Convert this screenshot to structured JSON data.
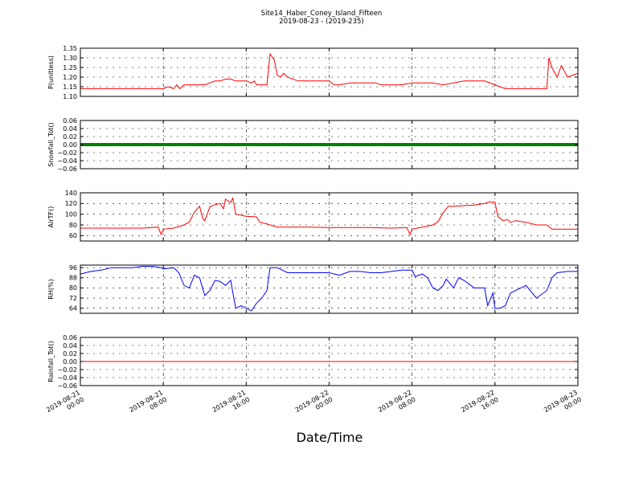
{
  "figure": {
    "title_line1": "Site14_Haber_Coney_Island_Fifteen",
    "title_line2": "2019-08-23 - (2019-235)",
    "xlabel": "Date/Time"
  },
  "chart_data": {
    "type": "line",
    "x_axis": {
      "range": [
        "2019-08-21 00:00",
        "2019-08-23 00:00"
      ],
      "tick_labels": [
        {
          "line1": "2019-08-21",
          "line2": "00:00",
          "t": 0
        },
        {
          "line1": "2019-08-21",
          "line2": "08:00",
          "t": 8
        },
        {
          "line1": "2019-08-21",
          "line2": "16:00",
          "t": 16
        },
        {
          "line1": "2019-08-22",
          "line2": "00:00",
          "t": 24
        },
        {
          "line1": "2019-08-22",
          "line2": "08:00",
          "t": 32
        },
        {
          "line1": "2019-08-22",
          "line2": "16:00",
          "t": 40
        },
        {
          "line1": "2019-08-23",
          "line2": "00:00",
          "t": 48
        }
      ]
    },
    "grid": true,
    "panels": [
      {
        "ylabel": "P(unitless)",
        "color": "#ff0000",
        "ylim": [
          1.1,
          1.35
        ],
        "yticks": [
          1.1,
          1.15,
          1.2,
          1.25,
          1.3,
          1.35
        ],
        "ytick_labels": [
          "1.10",
          "1.15",
          "1.20",
          "1.25",
          "1.30",
          "1.35"
        ],
        "marker": "line",
        "points": [
          [
            0,
            1.14
          ],
          [
            1,
            1.14
          ],
          [
            2,
            1.14
          ],
          [
            3,
            1.14
          ],
          [
            4,
            1.14
          ],
          [
            5,
            1.14
          ],
          [
            6,
            1.14
          ],
          [
            7,
            1.14
          ],
          [
            8,
            1.14
          ],
          [
            8.5,
            1.15
          ],
          [
            9,
            1.14
          ],
          [
            9.3,
            1.16
          ],
          [
            9.6,
            1.14
          ],
          [
            10,
            1.16
          ],
          [
            11,
            1.16
          ],
          [
            12,
            1.16
          ],
          [
            12.5,
            1.17
          ],
          [
            13,
            1.18
          ],
          [
            13.5,
            1.18
          ],
          [
            14,
            1.19
          ],
          [
            14.5,
            1.19
          ],
          [
            15,
            1.18
          ],
          [
            16,
            1.18
          ],
          [
            16.5,
            1.17
          ],
          [
            16.8,
            1.18
          ],
          [
            17,
            1.16
          ],
          [
            18,
            1.16
          ],
          [
            18.3,
            1.32
          ],
          [
            18.7,
            1.29
          ],
          [
            19,
            1.21
          ],
          [
            19.3,
            1.2
          ],
          [
            19.6,
            1.22
          ],
          [
            20,
            1.2
          ],
          [
            21,
            1.18
          ],
          [
            22,
            1.18
          ],
          [
            23,
            1.18
          ],
          [
            24,
            1.18
          ],
          [
            24.5,
            1.16
          ],
          [
            25,
            1.16
          ],
          [
            26,
            1.17
          ],
          [
            27,
            1.17
          ],
          [
            28,
            1.17
          ],
          [
            28.5,
            1.17
          ],
          [
            29,
            1.16
          ],
          [
            30,
            1.16
          ],
          [
            31,
            1.16
          ],
          [
            32,
            1.17
          ],
          [
            33,
            1.17
          ],
          [
            34,
            1.17
          ],
          [
            35,
            1.16
          ],
          [
            36,
            1.17
          ],
          [
            37,
            1.18
          ],
          [
            38,
            1.18
          ],
          [
            39,
            1.18
          ],
          [
            40,
            1.16
          ],
          [
            41,
            1.14
          ],
          [
            42,
            1.14
          ],
          [
            43,
            1.14
          ],
          [
            44,
            1.14
          ],
          [
            45,
            1.14
          ],
          [
            45.2,
            1.3
          ],
          [
            45.5,
            1.25
          ],
          [
            46,
            1.2
          ],
          [
            46.4,
            1.26
          ],
          [
            47,
            1.2
          ],
          [
            47.5,
            1.21
          ],
          [
            48,
            1.22
          ]
        ]
      },
      {
        "ylabel": "Snowfall_Tot()",
        "color": "#008000",
        "ylim": [
          -0.06,
          0.06
        ],
        "yticks": [
          -0.06,
          -0.04,
          -0.02,
          0.0,
          0.02,
          0.04,
          0.06
        ],
        "ytick_labels": [
          "−0.06",
          "−0.04",
          "−0.02",
          "0.00",
          "0.02",
          "0.04",
          "0.06"
        ],
        "marker": "thick-line",
        "points": [
          [
            0,
            0.0
          ],
          [
            48,
            0.0
          ]
        ]
      },
      {
        "ylabel": "AirTF()",
        "color": "#ff0000",
        "ylim": [
          50,
          140
        ],
        "yticks": [
          60,
          80,
          100,
          120,
          140
        ],
        "ytick_labels": [
          "60",
          "80",
          "100",
          "120",
          "140"
        ],
        "marker": "line",
        "points": [
          [
            0,
            74
          ],
          [
            2,
            74
          ],
          [
            4,
            74
          ],
          [
            6,
            74
          ],
          [
            7.5,
            76
          ],
          [
            7.8,
            62
          ],
          [
            8,
            72
          ],
          [
            9,
            74
          ],
          [
            10,
            80
          ],
          [
            10.5,
            85
          ],
          [
            11,
            104
          ],
          [
            11.5,
            115
          ],
          [
            11.8,
            92
          ],
          [
            12,
            88
          ],
          [
            12.5,
            114
          ],
          [
            13,
            118
          ],
          [
            13.5,
            120
          ],
          [
            13.8,
            110
          ],
          [
            14,
            128
          ],
          [
            14.5,
            122
          ],
          [
            14.7,
            130
          ],
          [
            15,
            100
          ],
          [
            15.5,
            98
          ],
          [
            16,
            96
          ],
          [
            17,
            95
          ],
          [
            17.3,
            85
          ],
          [
            18,
            82
          ],
          [
            19,
            76
          ],
          [
            20,
            76
          ],
          [
            22,
            76
          ],
          [
            24,
            75
          ],
          [
            26,
            75
          ],
          [
            28,
            75
          ],
          [
            30,
            74
          ],
          [
            31.5,
            75
          ],
          [
            31.8,
            62
          ],
          [
            32,
            72
          ],
          [
            33,
            76
          ],
          [
            34,
            80
          ],
          [
            34.5,
            86
          ],
          [
            35,
            103
          ],
          [
            35.5,
            115
          ],
          [
            36,
            115
          ],
          [
            37,
            116
          ],
          [
            38,
            117
          ],
          [
            39,
            120
          ],
          [
            39.5,
            123
          ],
          [
            40,
            122
          ],
          [
            40.3,
            95
          ],
          [
            40.8,
            88
          ],
          [
            41.2,
            90
          ],
          [
            41.5,
            85
          ],
          [
            42,
            88
          ],
          [
            43,
            85
          ],
          [
            44,
            80
          ],
          [
            45,
            80
          ],
          [
            45.5,
            72
          ],
          [
            46,
            72
          ],
          [
            48,
            72
          ]
        ]
      },
      {
        "ylabel": "RH(%)",
        "color": "#0000ff",
        "ylim": [
          60,
          98
        ],
        "yticks": [
          64,
          72,
          80,
          88,
          96
        ],
        "ytick_labels": [
          "64",
          "72",
          "80",
          "88",
          "96"
        ],
        "marker": "line",
        "points": [
          [
            0,
            91
          ],
          [
            1,
            93
          ],
          [
            2,
            94
          ],
          [
            3,
            96
          ],
          [
            4,
            96
          ],
          [
            5,
            96
          ],
          [
            6,
            97
          ],
          [
            7,
            97
          ],
          [
            7.8,
            96
          ],
          [
            8,
            95
          ],
          [
            9,
            96
          ],
          [
            9.5,
            92
          ],
          [
            10,
            82
          ],
          [
            10.5,
            80
          ],
          [
            11,
            90
          ],
          [
            11.5,
            88
          ],
          [
            12,
            74
          ],
          [
            12.5,
            78
          ],
          [
            13,
            86
          ],
          [
            13.5,
            85
          ],
          [
            14,
            82
          ],
          [
            14.5,
            86
          ],
          [
            14.8,
            72
          ],
          [
            15,
            64
          ],
          [
            15.5,
            66
          ],
          [
            16,
            64
          ],
          [
            16.5,
            62
          ],
          [
            17,
            68
          ],
          [
            17.5,
            72
          ],
          [
            18,
            78
          ],
          [
            18.3,
            96
          ],
          [
            19,
            96
          ],
          [
            20,
            92
          ],
          [
            21,
            92
          ],
          [
            22,
            92
          ],
          [
            23,
            92
          ],
          [
            24,
            92
          ],
          [
            25,
            90
          ],
          [
            26,
            93
          ],
          [
            27,
            93
          ],
          [
            28,
            92
          ],
          [
            29,
            92
          ],
          [
            30,
            93
          ],
          [
            31,
            94
          ],
          [
            32,
            94
          ],
          [
            32.3,
            89
          ],
          [
            33,
            91
          ],
          [
            33.5,
            88
          ],
          [
            34,
            80
          ],
          [
            34.5,
            78
          ],
          [
            35,
            82
          ],
          [
            35.3,
            87
          ],
          [
            36,
            80
          ],
          [
            36.5,
            88
          ],
          [
            37,
            86
          ],
          [
            37.5,
            83
          ],
          [
            38,
            80
          ],
          [
            39,
            80
          ],
          [
            39.3,
            66
          ],
          [
            39.8,
            76
          ],
          [
            40,
            64
          ],
          [
            40.5,
            64
          ],
          [
            41,
            66
          ],
          [
            41.5,
            76
          ],
          [
            42,
            78
          ],
          [
            42.5,
            80
          ],
          [
            43,
            82
          ],
          [
            44,
            72
          ],
          [
            45,
            78
          ],
          [
            45.5,
            88
          ],
          [
            46,
            92
          ],
          [
            47,
            93
          ],
          [
            48,
            93
          ]
        ]
      },
      {
        "ylabel": "Rainfall_Tot()",
        "color": "#ff0000",
        "ylim": [
          -0.06,
          0.06
        ],
        "yticks": [
          -0.06,
          -0.04,
          -0.02,
          0.0,
          0.02,
          0.04,
          0.06
        ],
        "ytick_labels": [
          "−0.06",
          "−0.04",
          "−0.02",
          "0.00",
          "0.02",
          "0.04",
          "0.06"
        ],
        "marker": "line",
        "points": [
          [
            0,
            0.0
          ],
          [
            48,
            0.0
          ]
        ]
      }
    ]
  }
}
